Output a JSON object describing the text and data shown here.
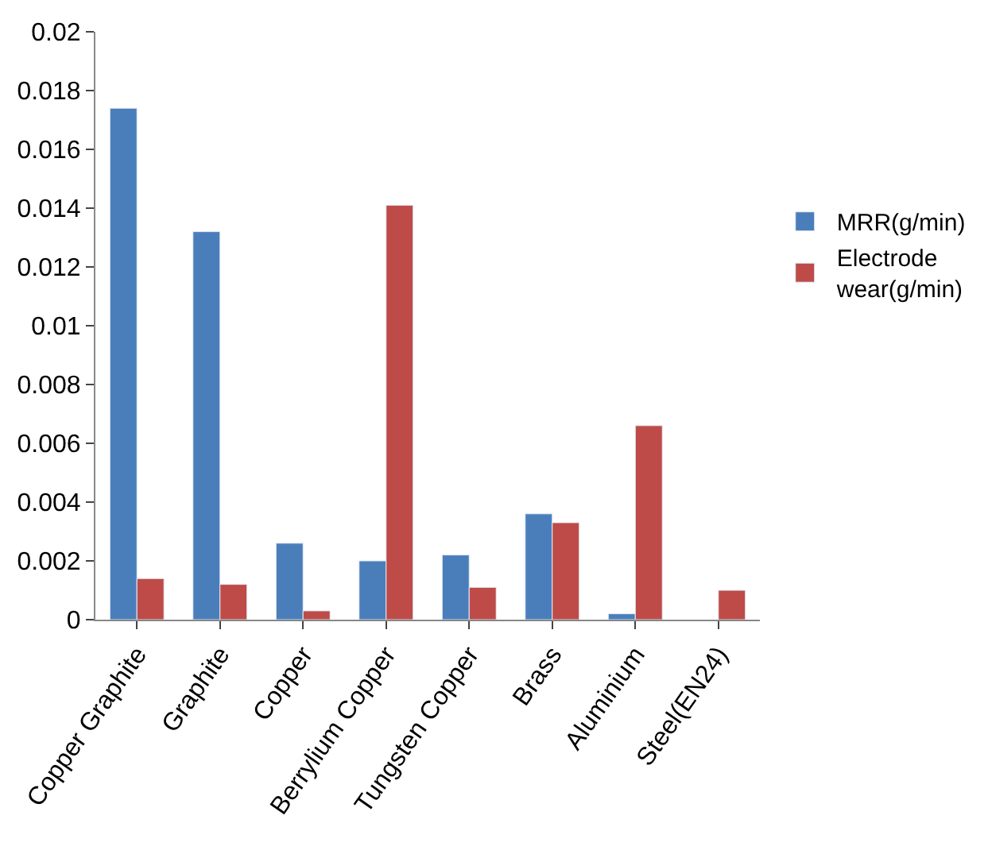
{
  "chart_data": {
    "type": "bar",
    "categories": [
      "Copper Graphite",
      "Graphite",
      "Copper",
      "Berrylium Copper",
      "Tungsten Copper",
      "Brass",
      "Aluminium",
      "Steel(EN24)"
    ],
    "series": [
      {
        "name": "MRR(g/min)",
        "color": "#4a7ebb",
        "values": [
          0.0174,
          0.0132,
          0.0026,
          0.002,
          0.0022,
          0.0036,
          0.0002,
          null
        ]
      },
      {
        "name": "Electrode wear(g/min)",
        "color": "#be4b48",
        "values": [
          0.0014,
          0.0012,
          0.0003,
          0.0141,
          0.0011,
          0.0033,
          0.0066,
          0.001
        ]
      }
    ],
    "ylim": [
      0,
      0.02
    ],
    "yticks": [
      0,
      0.002,
      0.004,
      0.006,
      0.008,
      0.01,
      0.012,
      0.014,
      0.016,
      0.018,
      0.02
    ],
    "grid": false,
    "legend": "right"
  }
}
